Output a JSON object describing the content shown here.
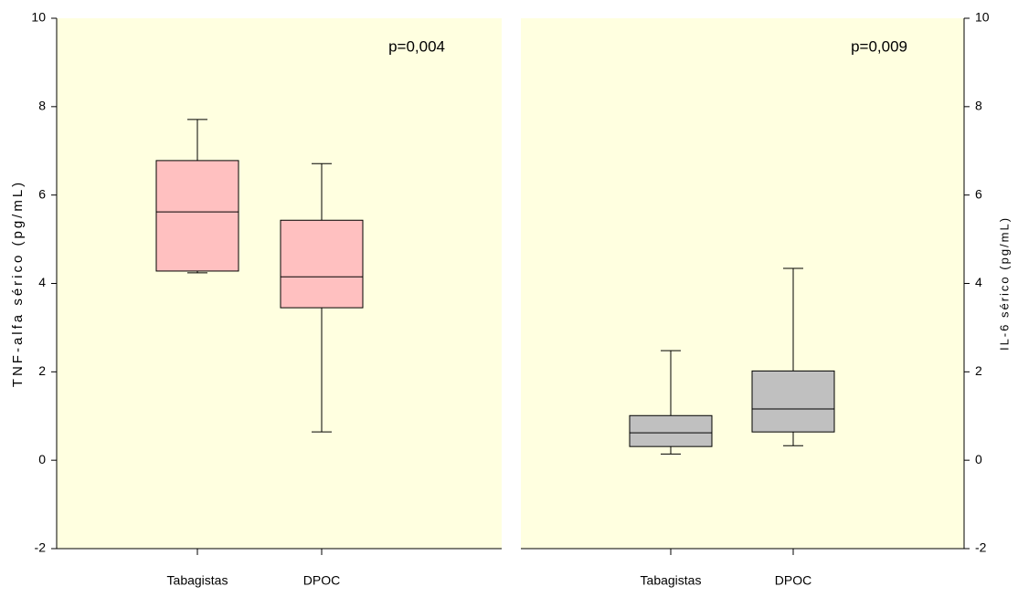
{
  "chart_data": [
    {
      "type": "box",
      "y_label": "TNF-alfa sérico (pg/mL)",
      "annotation": "p=0,004",
      "categories": [
        "Tabagistas",
        "DPOC"
      ],
      "color": "#ffc0c0",
      "axis_side": "left",
      "ylim": [
        -2,
        10
      ],
      "yticks": [
        -2,
        0,
        2,
        4,
        6,
        8,
        10
      ],
      "boxes": [
        {
          "min": 4.24,
          "q1": 4.28,
          "median": 5.62,
          "q3": 6.78,
          "max": 7.71
        },
        {
          "min": 0.64,
          "q1": 3.45,
          "median": 4.15,
          "q3": 5.43,
          "max": 6.71
        }
      ]
    },
    {
      "type": "box",
      "y_label": "IL-6 sérico (pg/mL)",
      "annotation": "p=0,009",
      "categories": [
        "Tabagistas",
        "DPOC"
      ],
      "color": "#c0c0c0",
      "axis_side": "right",
      "ylim": [
        -2,
        10
      ],
      "yticks": [
        -2,
        0,
        2,
        4,
        6,
        8,
        10
      ],
      "boxes": [
        {
          "min": 0.14,
          "q1": 0.31,
          "median": 0.62,
          "q3": 1.01,
          "max": 2.48
        },
        {
          "min": 0.33,
          "q1": 0.64,
          "median": 1.16,
          "q3": 2.02,
          "max": 4.34
        }
      ]
    }
  ]
}
